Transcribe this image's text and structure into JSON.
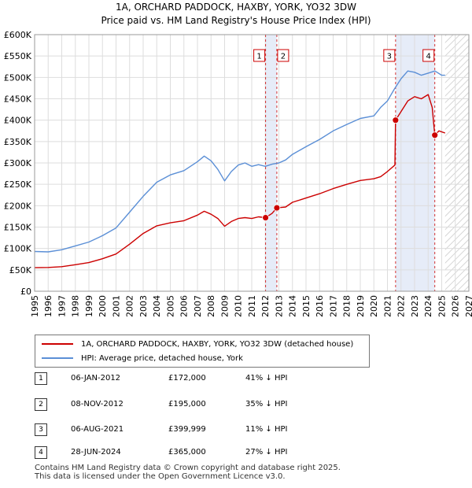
{
  "chart_data": {
    "type": "line",
    "title": "1A, ORCHARD PADDOCK, HAXBY, YORK, YO32 3DW",
    "subtitle": "Price paid vs. HM Land Registry's House Price Index (HPI)",
    "xlabel": "",
    "ylabel": "",
    "xlim": [
      1995,
      2027
    ],
    "ylim": [
      0,
      600000
    ],
    "x_ticks": [
      "1995",
      "1996",
      "1997",
      "1998",
      "1999",
      "2000",
      "2001",
      "2002",
      "2003",
      "2004",
      "2005",
      "2006",
      "2007",
      "2008",
      "2009",
      "2010",
      "2011",
      "2012",
      "2013",
      "2014",
      "2015",
      "2016",
      "2017",
      "2018",
      "2019",
      "2020",
      "2021",
      "2022",
      "2023",
      "2024",
      "2025",
      "2026",
      "2027"
    ],
    "y_ticks": [
      {
        "value": 0,
        "label": "£0"
      },
      {
        "value": 50000,
        "label": "£50K"
      },
      {
        "value": 100000,
        "label": "£100K"
      },
      {
        "value": 150000,
        "label": "£150K"
      },
      {
        "value": 200000,
        "label": "£200K"
      },
      {
        "value": 250000,
        "label": "£250K"
      },
      {
        "value": 300000,
        "label": "£300K"
      },
      {
        "value": 350000,
        "label": "£350K"
      },
      {
        "value": 400000,
        "label": "£400K"
      },
      {
        "value": 450000,
        "label": "£450K"
      },
      {
        "value": 500000,
        "label": "£500K"
      },
      {
        "value": 550000,
        "label": "£550K"
      },
      {
        "value": 600000,
        "label": "£600K"
      }
    ],
    "grid": true,
    "future_hatch_from": 2025.25,
    "shaded_spans": [
      [
        2012.02,
        2012.85
      ],
      [
        2021.6,
        2024.49
      ]
    ],
    "series": [
      {
        "name": "1A, ORCHARD PADDOCK, HAXBY, YORK, YO32 3DW (detached house)",
        "color": "#cc0000",
        "points": [
          [
            1995.0,
            55000
          ],
          [
            1996.0,
            55500
          ],
          [
            1997.0,
            57500
          ],
          [
            1998.0,
            62000
          ],
          [
            1999.0,
            67000
          ],
          [
            2000.0,
            76000
          ],
          [
            2001.0,
            87000
          ],
          [
            2002.0,
            110000
          ],
          [
            2003.0,
            135000
          ],
          [
            2004.0,
            153000
          ],
          [
            2005.0,
            160000
          ],
          [
            2006.0,
            165000
          ],
          [
            2007.0,
            178000
          ],
          [
            2007.5,
            187000
          ],
          [
            2008.0,
            180000
          ],
          [
            2008.5,
            170000
          ],
          [
            2009.0,
            152000
          ],
          [
            2009.5,
            163000
          ],
          [
            2010.0,
            170000
          ],
          [
            2010.5,
            172000
          ],
          [
            2011.0,
            170000
          ],
          [
            2011.5,
            174000
          ],
          [
            2012.02,
            172000
          ],
          [
            2012.5,
            182000
          ],
          [
            2012.85,
            195000
          ],
          [
            2013.5,
            197000
          ],
          [
            2014.0,
            208000
          ],
          [
            2015.0,
            218000
          ],
          [
            2016.0,
            228000
          ],
          [
            2017.0,
            240000
          ],
          [
            2018.0,
            250000
          ],
          [
            2019.0,
            259000
          ],
          [
            2020.0,
            263000
          ],
          [
            2020.5,
            268000
          ],
          [
            2021.0,
            280000
          ],
          [
            2021.55,
            295000
          ],
          [
            2021.6,
            399999
          ],
          [
            2022.0,
            420000
          ],
          [
            2022.5,
            445000
          ],
          [
            2023.0,
            455000
          ],
          [
            2023.5,
            450000
          ],
          [
            2024.0,
            460000
          ],
          [
            2024.3,
            430000
          ],
          [
            2024.49,
            365000
          ],
          [
            2024.8,
            375000
          ],
          [
            2025.25,
            370000
          ]
        ]
      },
      {
        "name": "HPI: Average price, detached house, York",
        "color": "#5b8fd6",
        "points": [
          [
            1995.0,
            93000
          ],
          [
            1996.0,
            92000
          ],
          [
            1997.0,
            97000
          ],
          [
            1998.0,
            106000
          ],
          [
            1999.0,
            115000
          ],
          [
            2000.0,
            130000
          ],
          [
            2001.0,
            148000
          ],
          [
            2002.0,
            185000
          ],
          [
            2003.0,
            222000
          ],
          [
            2004.0,
            255000
          ],
          [
            2005.0,
            272000
          ],
          [
            2006.0,
            282000
          ],
          [
            2007.0,
            303000
          ],
          [
            2007.5,
            316000
          ],
          [
            2008.0,
            305000
          ],
          [
            2008.5,
            285000
          ],
          [
            2009.0,
            258000
          ],
          [
            2009.5,
            280000
          ],
          [
            2010.0,
            295000
          ],
          [
            2010.5,
            300000
          ],
          [
            2011.0,
            292000
          ],
          [
            2011.5,
            296000
          ],
          [
            2012.0,
            292000
          ],
          [
            2012.5,
            297000
          ],
          [
            2013.0,
            300000
          ],
          [
            2013.5,
            307000
          ],
          [
            2014.0,
            320000
          ],
          [
            2015.0,
            338000
          ],
          [
            2016.0,
            355000
          ],
          [
            2017.0,
            375000
          ],
          [
            2018.0,
            390000
          ],
          [
            2019.0,
            404000
          ],
          [
            2020.0,
            410000
          ],
          [
            2020.5,
            430000
          ],
          [
            2021.0,
            445000
          ],
          [
            2021.5,
            472000
          ],
          [
            2022.0,
            497000
          ],
          [
            2022.5,
            515000
          ],
          [
            2023.0,
            512000
          ],
          [
            2023.5,
            505000
          ],
          [
            2024.0,
            510000
          ],
          [
            2024.5,
            515000
          ],
          [
            2025.0,
            505000
          ],
          [
            2025.25,
            505000
          ]
        ]
      }
    ],
    "sales": [
      {
        "label": "1",
        "x": 2012.02,
        "y": 172000
      },
      {
        "label": "2",
        "x": 2012.85,
        "y": 195000
      },
      {
        "label": "3",
        "x": 2021.6,
        "y": 399999
      },
      {
        "label": "4",
        "x": 2024.49,
        "y": 365000
      }
    ]
  },
  "title_line1": "1A, ORCHARD PADDOCK, HAXBY, YORK, YO32 3DW",
  "title_line2": "Price paid vs. HM Land Registry's House Price Index (HPI)",
  "legend": {
    "property": "1A, ORCHARD PADDOCK, HAXBY, YORK, YO32 3DW (detached house)",
    "hpi": "HPI: Average price, detached house, York"
  },
  "transactions": [
    {
      "num": "1",
      "date": "06-JAN-2012",
      "price": "£172,000",
      "hpi": "41% ↓ HPI"
    },
    {
      "num": "2",
      "date": "08-NOV-2012",
      "price": "£195,000",
      "hpi": "35% ↓ HPI"
    },
    {
      "num": "3",
      "date": "06-AUG-2021",
      "price": "£399,999",
      "hpi": "11% ↓ HPI"
    },
    {
      "num": "4",
      "date": "28-JUN-2024",
      "price": "£365,000",
      "hpi": "27% ↓ HPI"
    }
  ],
  "footer_line1": "Contains HM Land Registry data © Crown copyright and database right 2025.",
  "footer_line2": "This data is licensed under the Open Government Licence v3.0."
}
